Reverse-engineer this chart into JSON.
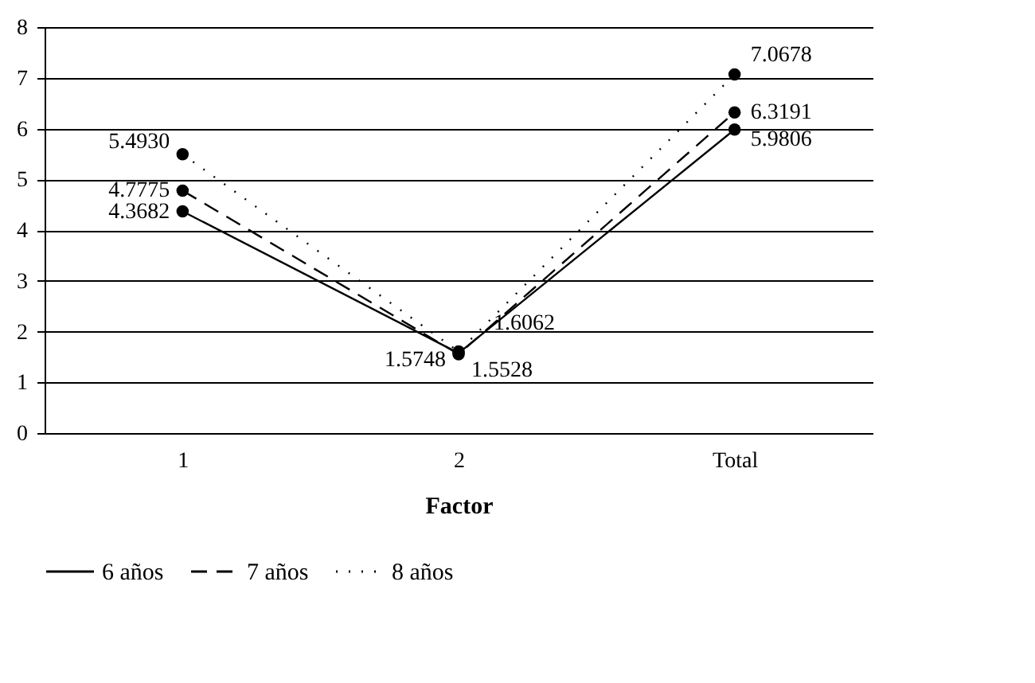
{
  "chart_data": {
    "type": "line",
    "xlabel": "Factor",
    "categories": [
      "1",
      "2",
      "Total"
    ],
    "ylim": [
      0,
      8
    ],
    "yticks": [
      0,
      1,
      2,
      3,
      4,
      5,
      6,
      7,
      8
    ],
    "grid": "y",
    "legend": "bottom",
    "marker": "circle",
    "series": [
      {
        "name": "6 años",
        "color": "#000000",
        "line_style": "solid",
        "values": [
          4.3682,
          1.5748,
          5.9806
        ],
        "value_labels": [
          "4.3682",
          "1.5748",
          "5.9806"
        ]
      },
      {
        "name": "7 años",
        "color": "#000000",
        "line_style": "dashed",
        "values": [
          4.7775,
          1.5528,
          6.3191
        ],
        "value_labels": [
          "4.7775",
          "1.5528",
          "6.3191"
        ]
      },
      {
        "name": "8 años",
        "color": "#000000",
        "line_style": "dotted",
        "values": [
          5.493,
          1.6062,
          7.0678
        ],
        "value_labels": [
          "5.4930",
          "1.6062",
          "7.0678"
        ]
      }
    ]
  }
}
